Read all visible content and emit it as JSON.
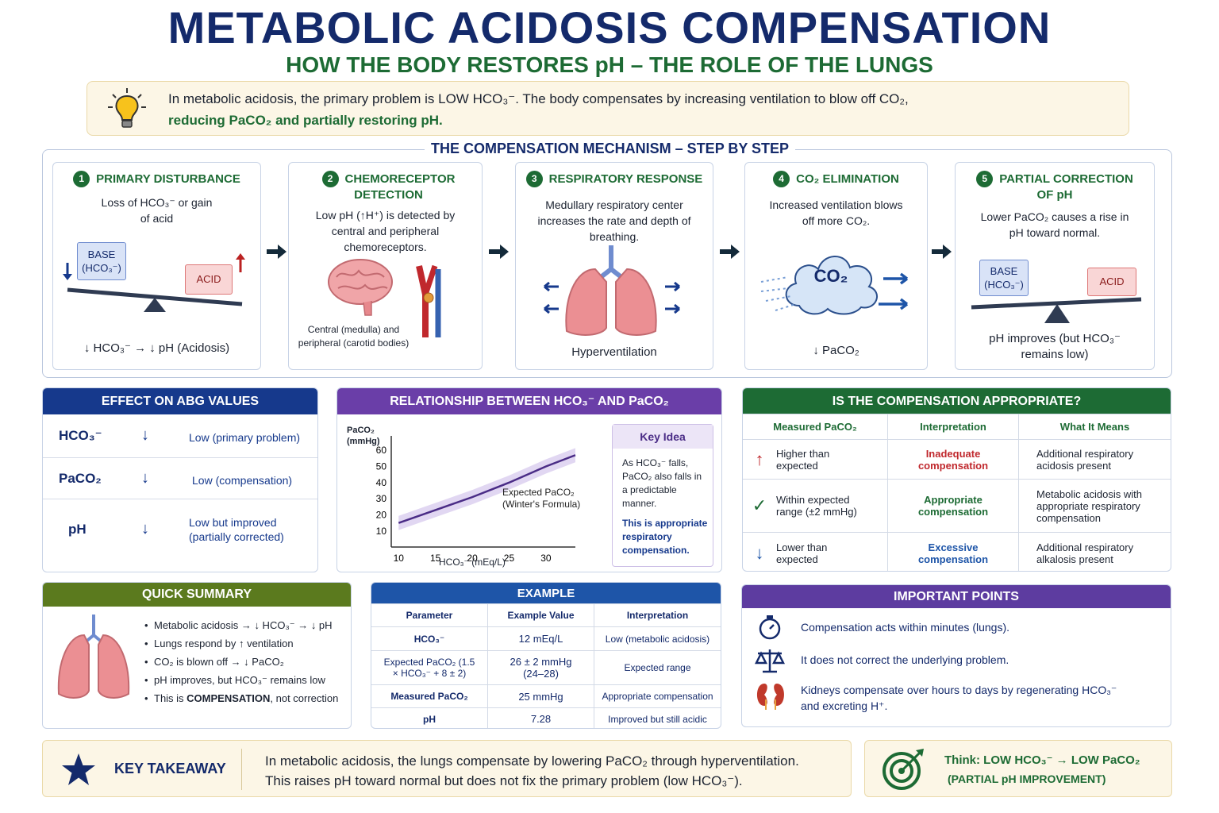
{
  "title": "METABOLIC ACIDOSIS COMPENSATION",
  "subtitle": "HOW THE BODY RESTORES pH – THE ROLE OF THE LUNGS",
  "intro": {
    "line1": "In metabolic acidosis, the primary problem is LOW HCO₃⁻.  The body compensates by increasing ventilation to blow off CO₂,",
    "line2": "reducing PaCO₂ and partially restoring pH.",
    "icon": "lightbulb-icon"
  },
  "mechanism": {
    "title": "THE COMPENSATION MECHANISM – STEP BY STEP",
    "steps": [
      {
        "num": "1",
        "title": "PRIMARY DISTURBANCE",
        "text": "Loss of HCO₃⁻ or gain of acid",
        "base": "BASE (HCO₃⁻)",
        "acid": "ACID",
        "footer": "↓ HCO₃⁻ → ↓ pH (Acidosis)"
      },
      {
        "num": "2",
        "title": "CHEMORECEPTOR DETECTION",
        "text": "Low pH (↑H⁺) is detected by central and peripheral chemoreceptors.",
        "caption": "Central (medulla) and peripheral (carotid bodies)"
      },
      {
        "num": "3",
        "title": "RESPIRATORY RESPONSE",
        "text": "Medullary respiratory center increases the rate and depth of breathing.",
        "footer": "Hyperventilation"
      },
      {
        "num": "4",
        "title": "CO₂ ELIMINATION",
        "text": "Increased ventilation blows off more CO₂.",
        "cloud": "CO₂",
        "footer": "↓ PaCO₂"
      },
      {
        "num": "5",
        "title": "PARTIAL CORRECTION OF pH",
        "text": "Lower PaCO₂ causes a rise in pH toward normal.",
        "base": "BASE (HCO₃⁻)",
        "acid": "ACID",
        "footer": "pH improves (but HCO₃⁻ remains low)"
      }
    ]
  },
  "abg": {
    "title": "EFFECT ON ABG VALUES",
    "rows": [
      {
        "param": "HCO₃⁻",
        "arrow": "↓",
        "value": "Low (primary problem)"
      },
      {
        "param": "PaCO₂",
        "arrow": "↓",
        "value": "Low (compensation)"
      },
      {
        "param": "pH",
        "arrow": "↓",
        "value": "Low but improved (partially corrected)"
      }
    ]
  },
  "relationship": {
    "title": "RELATIONSHIP BETWEEN HCO₃⁻ AND PaCO₂",
    "ylabel": "PaCO₂ (mmHg)",
    "xlabel": "HCO₃⁻ (mEq/L)",
    "curve_label": "Expected PaCO₂ (Winter's Formula)",
    "key_title": "Key Idea",
    "key_text": "As HCO₃⁻ falls, PaCO₂ also falls in a predictable manner.",
    "key_note": "This is appropriate respiratory compensation."
  },
  "chart_data": {
    "type": "line",
    "title": "",
    "xlabel": "HCO₃⁻ (mEq/L)",
    "ylabel": "PaCO₂ (mmHg)",
    "xticks": [
      10,
      15,
      20,
      25,
      30
    ],
    "yticks": [
      10,
      20,
      30,
      40,
      50,
      60
    ],
    "xlim": [
      9,
      34
    ],
    "ylim": [
      5,
      65
    ],
    "series": [
      {
        "name": "Expected PaCO₂ (Winter's Formula)",
        "x": [
          10,
          15,
          20,
          25,
          30,
          34
        ],
        "y": [
          15,
          23,
          31,
          40,
          50,
          57
        ],
        "band": 2
      }
    ]
  },
  "appropriate": {
    "title": "IS THE COMPENSATION APPROPRIATE?",
    "headers": [
      "Measured PaCO₂",
      "Interpretation",
      "What It Means"
    ],
    "rows": [
      {
        "icon": "up-arrow-icon",
        "symbol": "↑",
        "measured": "Higher than expected",
        "interp": "Inadequate compensation",
        "color": "#c0282d",
        "meaning": "Additional respiratory acidosis present"
      },
      {
        "icon": "check-icon",
        "symbol": "✓",
        "measured": "Within expected range (±2 mmHg)",
        "interp": "Appropriate compensation",
        "color": "#1d6b34",
        "meaning": "Metabolic acidosis with appropriate respiratory compensation"
      },
      {
        "icon": "down-arrow-icon",
        "symbol": "↓",
        "measured": "Lower than expected",
        "interp": "Excessive compensation",
        "color": "#1e55a8",
        "meaning": "Additional respiratory alkalosis present"
      }
    ]
  },
  "summary": {
    "title": "QUICK SUMMARY",
    "items": [
      "Metabolic acidosis → ↓ HCO₃⁻ → ↓ pH",
      "Lungs respond by ↑ ventilation",
      "CO₂ is blown off → ↓ PaCO₂",
      "pH improves, but HCO₃⁻ remains low"
    ],
    "last_pre": "This is ",
    "last_bold": "COMPENSATION",
    "last_post": ", not correction"
  },
  "example": {
    "title": "EXAMPLE",
    "headers": [
      "Parameter",
      "Example Value",
      "Interpretation"
    ],
    "rows": [
      [
        "HCO₃⁻",
        "12 mEq/L",
        "Low (metabolic acidosis)"
      ],
      [
        "Expected PaCO₂ (1.5 × HCO₃⁻ + 8 ± 2)",
        "26 ± 2 mmHg (24–28)",
        "Expected range"
      ],
      [
        "Measured PaCO₂",
        "25 mmHg",
        "Appropriate compensation"
      ],
      [
        "pH",
        "7.28",
        "Improved but still acidic"
      ]
    ]
  },
  "important": {
    "title": "IMPORTANT POINTS",
    "items": [
      {
        "icon": "stopwatch-icon",
        "text": "Compensation acts within minutes (lungs)."
      },
      {
        "icon": "scales-icon",
        "text": "It does not correct the underlying problem."
      },
      {
        "icon": "kidneys-icon",
        "text": "Kidneys compensate over hours to days by regenerating HCO₃⁻ and excreting H⁺."
      }
    ]
  },
  "takeaway": {
    "label": "KEY TAKEAWAY",
    "line1": "In metabolic acidosis, the lungs compensate by lowering PaCO₂ through hyperventilation.",
    "line2": "This raises pH toward normal but does not fix the primary problem (low HCO₃⁻)."
  },
  "think": {
    "line1": "Think: LOW HCO₃⁻ → LOW PaCO₂",
    "line2": "(PARTIAL pH IMPROVEMENT)"
  }
}
